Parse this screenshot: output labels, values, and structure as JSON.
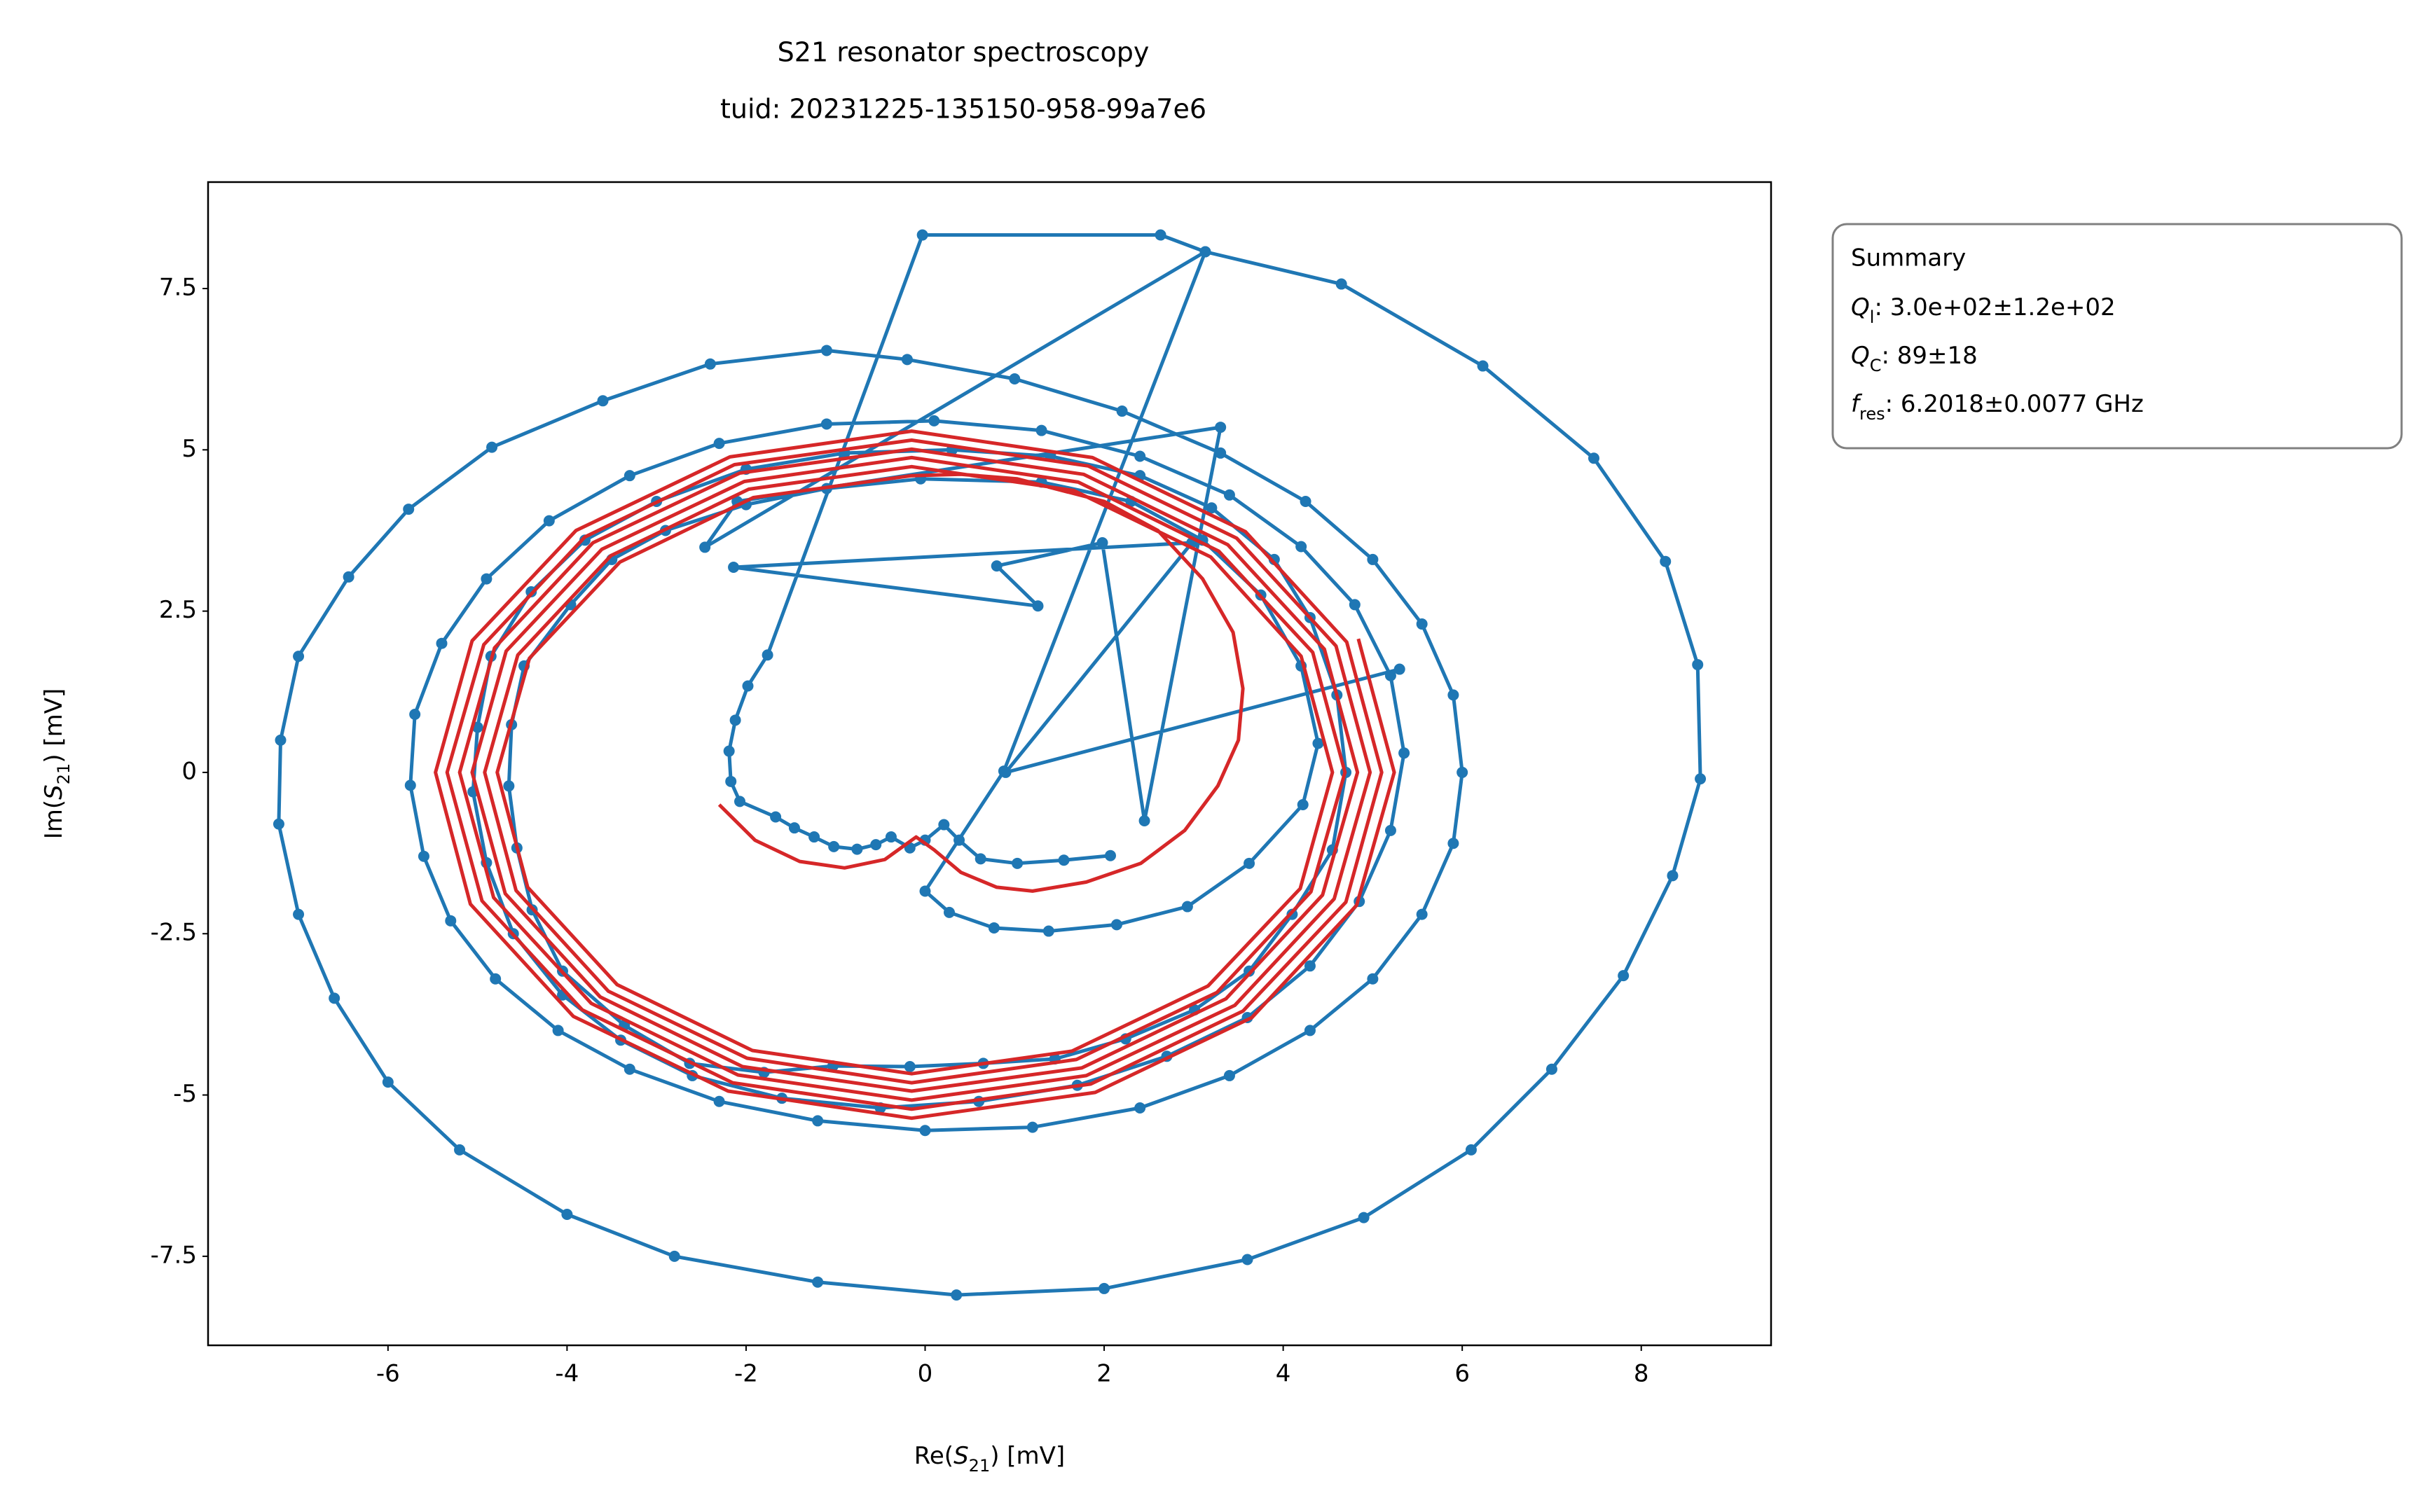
{
  "chart_data": {
    "type": "line",
    "title": "S21 resonator spectroscopy",
    "subtitle": "tuid: 20231225-135150-958-99a7e6",
    "xlabel": {
      "prefix": "Re(",
      "symbol": "S",
      "subscript": "21",
      "suffix": ") [mV]"
    },
    "ylabel": {
      "prefix": "Im(",
      "symbol": "S",
      "subscript": "21",
      "suffix": ") [mV]"
    },
    "xlim": [
      -8.01,
      9.45
    ],
    "ylim": [
      -8.88,
      9.15
    ],
    "xticks": [
      -6,
      -4,
      -2,
      0,
      2,
      4,
      6,
      8
    ],
    "yticks": [
      -7.5,
      -5,
      -2.5,
      0,
      2.5,
      5,
      7.5
    ],
    "grid": false,
    "annotation": {
      "title": "Summary",
      "lines": [
        {
          "symbol": "Q",
          "subscript": "l",
          "text": ": 3.0e+02±1.2e+02"
        },
        {
          "symbol": "Q",
          "subscript": "C",
          "text": ": 89±18"
        },
        {
          "symbol": "f",
          "subscript": "res",
          "text": ": 6.2018±0.0077 GHz"
        }
      ]
    },
    "series": [
      {
        "color": "#1f77b4",
        "markers": true,
        "x": [
          2.07,
          1.55,
          1.03,
          0.62,
          0.38,
          0.21,
          0.0,
          -0.17,
          -0.38,
          -0.55,
          -0.76,
          -1.02,
          -1.24,
          -1.46,
          -1.67,
          -2.07,
          -2.17,
          -2.19,
          -2.12,
          -1.98,
          -1.76,
          -0.03,
          2.63,
          3.13,
          4.65,
          6.23,
          7.47,
          8.27,
          8.63,
          8.66,
          8.35,
          7.8,
          7.0,
          6.1,
          4.9,
          3.6,
          2.0,
          0.35,
          -1.2,
          -2.8,
          -4.0,
          -5.2,
          -6.0,
          -6.6,
          -7.0,
          -7.22,
          -7.2,
          -7.0,
          -6.44,
          -5.77,
          -4.84,
          -3.6,
          -2.4,
          -1.1,
          -0.2,
          1.0,
          2.2,
          3.3,
          4.25,
          5.0,
          5.55,
          5.9,
          6.0,
          5.9,
          5.55,
          5.0,
          4.3,
          3.4,
          2.4,
          1.2,
          0.0,
          -1.2,
          -2.3,
          -3.3,
          -4.1,
          -4.8,
          -5.3,
          -5.6,
          -5.75,
          -5.7,
          -5.4,
          -4.9,
          -4.2,
          -3.3,
          -2.3,
          -1.1,
          0.1,
          1.3,
          2.4,
          3.4,
          4.2,
          4.8,
          5.2,
          5.35,
          5.2,
          4.85,
          4.3,
          3.6,
          2.7,
          1.7,
          0.6,
          -0.5,
          -1.6,
          -2.6,
          -3.4,
          -4.05,
          -4.6,
          -4.9,
          -5.05,
          -5.0,
          -4.85,
          -4.4,
          -3.8,
          -3.0,
          -2.0,
          -0.9,
          0.3,
          1.4,
          2.4,
          3.2,
          3.9,
          4.3,
          4.6,
          4.7,
          4.55,
          4.1,
          3.62,
          3.01,
          2.24,
          1.45,
          0.65,
          -0.17,
          -1.03,
          -1.8,
          -2.63,
          -3.36,
          -4.05,
          -4.39,
          -4.56,
          -4.65,
          -4.62,
          -4.48,
          -3.96,
          -3.5,
          -2.9,
          -2.0,
          -1.1,
          -0.05,
          1.3,
          2.3,
          3.1,
          3.75,
          4.2,
          4.39,
          4.22,
          3.62,
          2.93,
          2.14,
          1.38,
          0.77,
          0.27,
          0.0,
          0.88,
          3.13,
          -2.46,
          -2.1,
          3.3,
          2.45,
          1.98,
          0.8,
          1.26,
          -2.14,
          2.98,
          0.9,
          5.3
        ],
        "y": [
          -1.29,
          -1.36,
          -1.41,
          -1.34,
          -1.05,
          -0.81,
          -1.05,
          -1.17,
          -1.0,
          -1.12,
          -1.19,
          -1.15,
          -1.0,
          -0.86,
          -0.69,
          -0.45,
          -0.14,
          0.33,
          0.81,
          1.34,
          1.82,
          8.33,
          8.33,
          8.07,
          7.57,
          6.3,
          4.87,
          3.27,
          1.67,
          -0.1,
          -1.6,
          -3.15,
          -4.6,
          -5.85,
          -6.9,
          -7.55,
          -8.0,
          -8.1,
          -7.9,
          -7.5,
          -6.85,
          -5.85,
          -4.8,
          -3.5,
          -2.2,
          -0.8,
          0.5,
          1.8,
          3.03,
          4.08,
          5.04,
          5.76,
          6.33,
          6.54,
          6.4,
          6.1,
          5.6,
          4.95,
          4.2,
          3.3,
          2.3,
          1.2,
          0.0,
          -1.1,
          -2.2,
          -3.2,
          -4.0,
          -4.7,
          -5.2,
          -5.5,
          -5.55,
          -5.4,
          -5.1,
          -4.6,
          -4.0,
          -3.2,
          -2.3,
          -1.3,
          -0.2,
          0.9,
          2.0,
          3.0,
          3.9,
          4.6,
          5.1,
          5.4,
          5.45,
          5.3,
          4.9,
          4.3,
          3.5,
          2.6,
          1.5,
          0.3,
          -0.9,
          -2.0,
          -3.0,
          -3.8,
          -4.4,
          -4.85,
          -5.1,
          -5.2,
          -5.05,
          -4.7,
          -4.15,
          -3.45,
          -2.5,
          -1.4,
          -0.3,
          0.7,
          1.8,
          2.8,
          3.6,
          4.2,
          4.7,
          4.95,
          5.0,
          4.9,
          4.6,
          4.1,
          3.3,
          2.4,
          1.2,
          0.0,
          -1.2,
          -2.2,
          -3.08,
          -3.68,
          -4.13,
          -4.44,
          -4.51,
          -4.56,
          -4.55,
          -4.65,
          -4.51,
          -3.92,
          -3.08,
          -2.13,
          -1.17,
          -0.21,
          0.74,
          1.65,
          2.6,
          3.3,
          3.75,
          4.15,
          4.4,
          4.55,
          4.5,
          4.2,
          3.6,
          2.75,
          1.65,
          0.45,
          -0.5,
          -1.41,
          -2.08,
          -2.36,
          -2.46,
          -2.41,
          -2.17,
          -1.84,
          0.02,
          8.07,
          3.49,
          4.2,
          5.35,
          -0.75,
          3.56,
          3.2,
          2.58,
          3.18,
          3.56,
          0.0,
          1.6
        ]
      },
      {
        "color": "#d62728",
        "markers": false,
        "x": [
          -2.3,
          -1.9,
          -1.4,
          -0.9,
          -0.45,
          -0.1,
          0.1,
          0.4,
          0.8,
          1.2,
          1.8,
          2.41,
          2.9,
          3.27,
          3.5,
          3.55,
          3.44,
          3.1,
          2.6,
          2.0,
          1.03,
          0.4,
          -0.15,
          -1.92,
          -3.41,
          -4.42,
          -4.78,
          -4.44,
          -3.44,
          -1.93,
          -0.15,
          1.64,
          3.16,
          4.19,
          4.55,
          4.2,
          3.19,
          1.66,
          -0.15,
          -1.97,
          -3.51,
          -4.55,
          -4.92,
          -4.57,
          -3.54,
          -1.99,
          -0.15,
          1.69,
          3.26,
          4.31,
          4.69,
          4.33,
          3.28,
          1.71,
          -0.15,
          -2.02,
          -3.61,
          -4.68,
          -5.06,
          -4.69,
          -3.63,
          -2.04,
          -0.15,
          1.75,
          3.36,
          4.44,
          4.83,
          4.46,
          3.38,
          1.77,
          -0.15,
          -2.07,
          -3.71,
          -4.81,
          -5.2,
          -4.82,
          -3.73,
          -2.09,
          -0.15,
          1.8,
          3.46,
          4.57,
          4.97,
          4.59,
          3.48,
          1.82,
          -0.15,
          -2.13,
          -3.8,
          -4.93,
          -5.34,
          -4.95,
          -3.83,
          -2.15,
          -0.15,
          1.85,
          3.55,
          4.7,
          5.1,
          4.71,
          3.58,
          1.87,
          -0.15,
          -2.18,
          -3.9,
          -5.06,
          -5.47,
          -5.08,
          -3.93,
          -2.2,
          -0.15,
          1.9,
          3.65,
          4.82,
          5.24,
          4.84
        ],
        "y": [
          -0.5,
          -1.05,
          -1.38,
          -1.48,
          -1.35,
          -1.0,
          -1.2,
          -1.55,
          -1.78,
          -1.84,
          -1.7,
          -1.41,
          -0.9,
          -0.21,
          0.5,
          1.3,
          2.17,
          3.0,
          3.75,
          4.2,
          4.55,
          4.62,
          4.6,
          4.26,
          3.26,
          1.77,
          0,
          -1.78,
          -3.29,
          -4.31,
          -4.67,
          -4.32,
          -3.31,
          -1.8,
          0,
          1.8,
          3.34,
          4.37,
          4.74,
          4.39,
          3.36,
          1.82,
          0,
          -1.83,
          -3.39,
          -4.43,
          -4.81,
          -4.45,
          -3.41,
          -1.85,
          0,
          1.86,
          3.43,
          4.5,
          4.88,
          4.51,
          3.46,
          1.88,
          0,
          -1.88,
          -3.48,
          -4.56,
          -4.94,
          -4.58,
          -3.51,
          -1.9,
          0,
          1.91,
          3.53,
          4.62,
          5.01,
          4.64,
          3.56,
          1.93,
          0,
          -1.94,
          -3.58,
          -4.69,
          -5.08,
          -4.7,
          -3.61,
          -1.96,
          0,
          1.96,
          3.63,
          4.75,
          5.15,
          4.77,
          3.65,
          1.98,
          0,
          -1.99,
          -3.68,
          -4.81,
          -5.22,
          -4.83,
          -3.7,
          -2.01,
          0,
          2.02,
          3.73,
          4.88,
          5.29,
          4.89,
          3.75,
          2.04,
          0,
          -2.04,
          -3.78,
          -4.94,
          -5.36,
          -4.96,
          -3.8,
          -2.06,
          0,
          2.07
        ]
      }
    ]
  }
}
